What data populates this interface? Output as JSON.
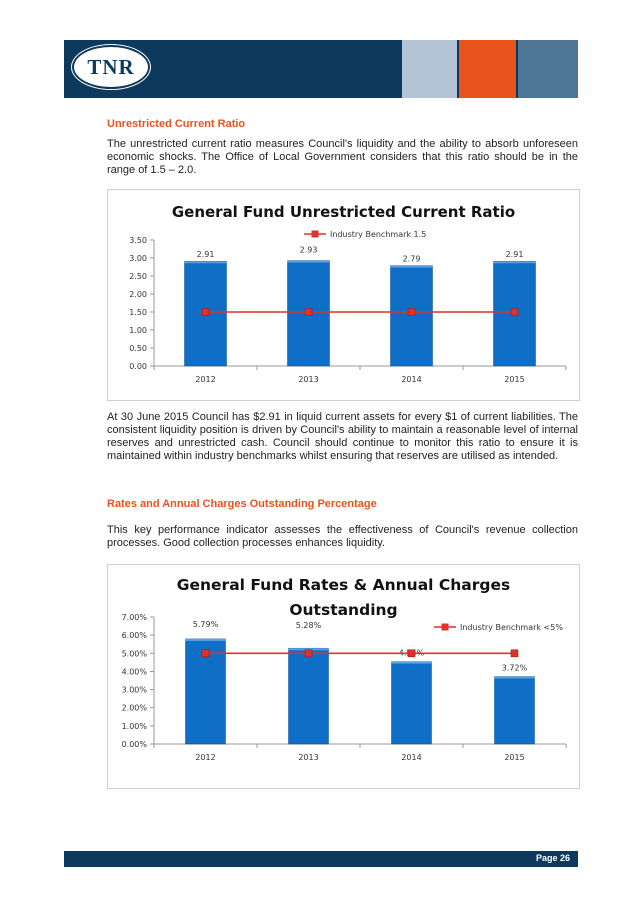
{
  "header": {
    "logo_text": "TNR",
    "colors": {
      "navy": "#0d3a5c",
      "light_blue": "#b3c4d6",
      "orange": "#e8541c",
      "steel_blue": "#4f7795"
    }
  },
  "section1": {
    "heading": "Unrestricted Current Ratio",
    "intro": "The unrestricted current ratio measures Council's liquidity and the ability to absorb unforeseen economic shocks. The Office of Local Government considers that this ratio should be in the range of 1.5 – 2.0.",
    "analysis": "At 30 June 2015 Council has $2.91 in liquid current assets for every $1 of current liabilities. The consistent liquidity position is driven by Council's ability to maintain a reasonable level of internal reserves and unrestricted cash. Council should continue to monitor this ratio to ensure it is maintained within industry benchmarks whilst ensuring that reserves are utilised as intended."
  },
  "section2": {
    "heading": "Rates and Annual Charges Outstanding Percentage",
    "intro": "This key performance indicator assesses the effectiveness of Council's revenue collection processes. Good collection processes enhances liquidity."
  },
  "footer": {
    "page_label": "Page 26"
  },
  "chart_data": [
    {
      "type": "bar",
      "title": "General Fund Unrestricted Current Ratio",
      "categories": [
        "2012",
        "2013",
        "2014",
        "2015"
      ],
      "values": [
        2.91,
        2.93,
        2.79,
        2.91
      ],
      "value_labels": [
        "2.91",
        "2.93",
        "2.79",
        "2.91"
      ],
      "benchmark": {
        "name": "Industry Benchmark 1.5",
        "values": [
          1.5,
          1.5,
          1.5,
          1.5
        ]
      },
      "y_ticks": [
        "0.00",
        "0.50",
        "1.00",
        "1.50",
        "2.00",
        "2.50",
        "3.00",
        "3.50"
      ],
      "ylim": [
        0,
        3.5
      ],
      "bar_color": "#0f6fc6",
      "line_color": "#e0302a",
      "legend_position": "top-center",
      "grid": false
    },
    {
      "type": "bar",
      "title": [
        "General Fund Rates & Annual Charges",
        "Outstanding"
      ],
      "categories": [
        "2012",
        "2013",
        "2014",
        "2015"
      ],
      "values": [
        5.79,
        5.28,
        4.54,
        3.72
      ],
      "value_labels": [
        "5.79%",
        "5.28%",
        "4.54%",
        "3.72%"
      ],
      "benchmark": {
        "name": "Industry Benchmark <5%",
        "values": [
          5,
          5,
          5,
          5
        ]
      },
      "y_ticks": [
        "0.00%",
        "1.00%",
        "2.00%",
        "3.00%",
        "4.00%",
        "5.00%",
        "6.00%",
        "7.00%"
      ],
      "ylim": [
        0,
        7
      ],
      "bar_color": "#0f6fc6",
      "line_color": "#e0302a",
      "legend_position": "top-right",
      "grid": false
    }
  ]
}
